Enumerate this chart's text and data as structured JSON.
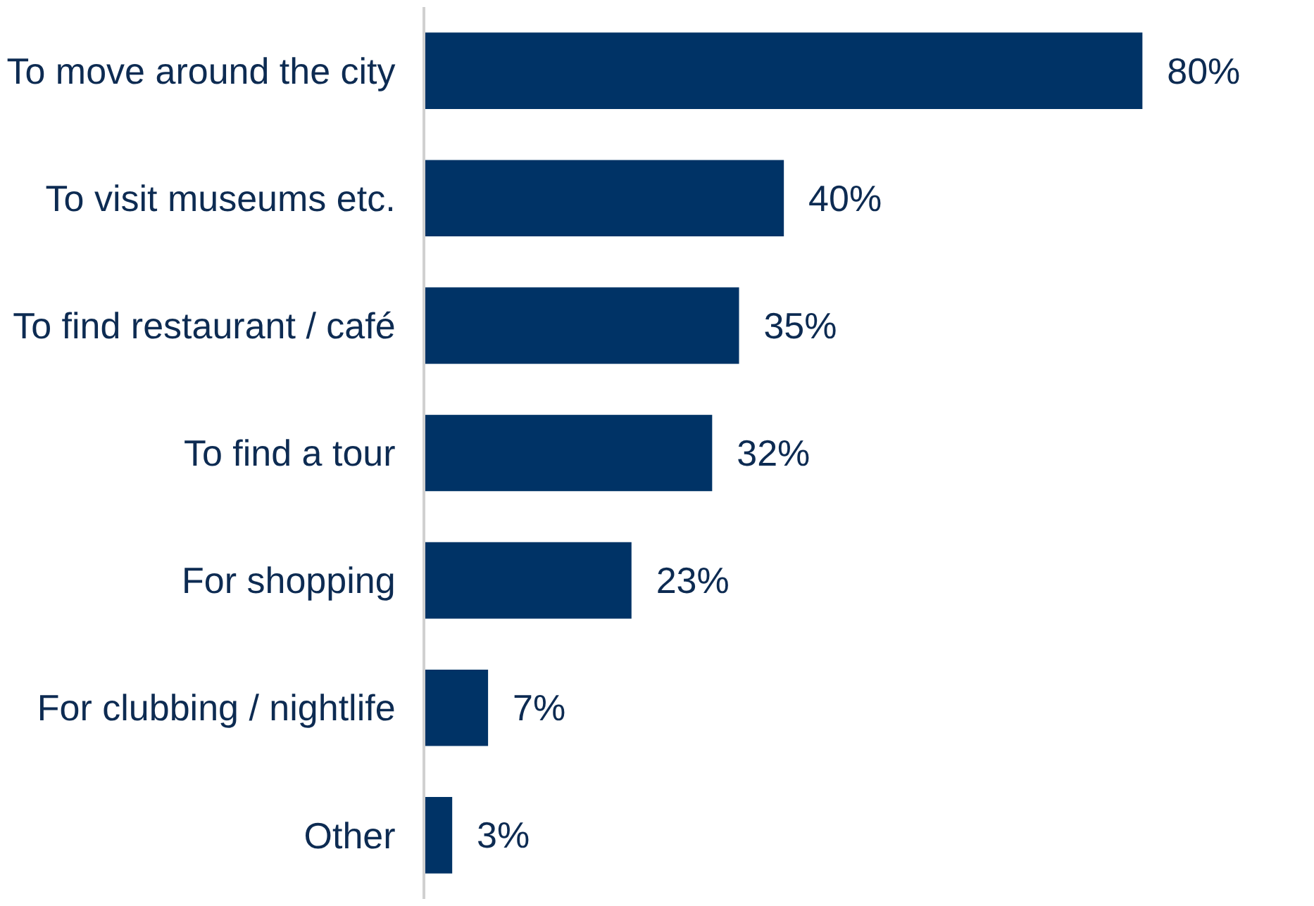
{
  "chart_data": {
    "type": "bar",
    "orientation": "horizontal",
    "categories": [
      "To move around the city",
      "To visit museums etc.",
      "To find restaurant / café",
      "To find a tour",
      "For shopping",
      "For clubbing / nightlife",
      "Other"
    ],
    "values": [
      80,
      40,
      35,
      32,
      23,
      7,
      3
    ],
    "value_labels": [
      "80%",
      "40%",
      "35%",
      "32%",
      "23%",
      "7%",
      "3%"
    ],
    "color": "#003366",
    "tick_labels": "y"
  }
}
